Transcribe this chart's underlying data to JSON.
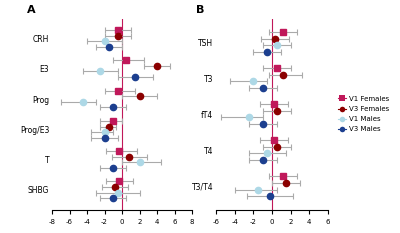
{
  "panel_A": {
    "categories": [
      "CRH",
      "E3",
      "Prog",
      "Prog/E3",
      "T",
      "SHBG"
    ],
    "series": {
      "V1 Females": {
        "color": "#c0185a",
        "marker": "s",
        "values": [
          -0.5,
          0.5,
          -0.5,
          -1.0,
          -0.3,
          -0.3
        ],
        "xerr_low": [
          1.5,
          1.5,
          1.5,
          1.5,
          1.5,
          1.5
        ],
        "xerr_high": [
          1.5,
          2.0,
          2.0,
          1.0,
          2.0,
          1.5
        ]
      },
      "V3 Females": {
        "color": "#8b0000",
        "marker": "o",
        "values": [
          -0.5,
          4.0,
          2.0,
          -1.5,
          0.8,
          -0.8
        ],
        "xerr_low": [
          1.5,
          1.5,
          2.0,
          1.0,
          2.0,
          1.5
        ],
        "xerr_high": [
          1.5,
          1.5,
          2.0,
          0.8,
          2.0,
          1.5
        ]
      },
      "V1 Males": {
        "color": "#add8e6",
        "marker": "o",
        "values": [
          -2.0,
          -2.5,
          -4.5,
          -2.0,
          2.0,
          -0.5
        ],
        "xerr_low": [
          2.0,
          2.0,
          2.5,
          1.5,
          2.0,
          2.5
        ],
        "xerr_high": [
          2.0,
          2.0,
          1.5,
          1.0,
          2.5,
          2.5
        ]
      },
      "V3 Males": {
        "color": "#1c3f8f",
        "marker": "o",
        "values": [
          -1.5,
          1.5,
          -1.0,
          -2.0,
          -1.0,
          -1.0
        ],
        "xerr_low": [
          1.5,
          2.0,
          1.5,
          1.5,
          1.5,
          1.5
        ],
        "xerr_high": [
          1.5,
          2.0,
          1.5,
          1.5,
          1.5,
          1.5
        ]
      }
    },
    "xlim": [
      -8,
      8
    ],
    "xticks": [
      -8,
      -6,
      -4,
      -2,
      0,
      2,
      4,
      6,
      8
    ]
  },
  "panel_B": {
    "categories": [
      "TSH",
      "T3",
      "fT4",
      "T4",
      "T3/T4"
    ],
    "series": {
      "V1 Females": {
        "color": "#c0185a",
        "marker": "s",
        "values": [
          1.2,
          0.5,
          0.2,
          0.2,
          1.2
        ],
        "xerr_low": [
          1.5,
          1.5,
          1.5,
          1.5,
          1.5
        ],
        "xerr_high": [
          1.5,
          1.5,
          1.5,
          1.5,
          1.5
        ]
      },
      "V3 Females": {
        "color": "#8b0000",
        "marker": "o",
        "values": [
          0.3,
          1.2,
          0.5,
          0.5,
          1.5
        ],
        "xerr_low": [
          1.5,
          1.5,
          1.5,
          1.5,
          1.5
        ],
        "xerr_high": [
          1.5,
          2.0,
          1.5,
          1.5,
          1.5
        ]
      },
      "V1 Males": {
        "color": "#add8e6",
        "marker": "o",
        "values": [
          0.5,
          -2.0,
          -2.5,
          -0.5,
          -1.5
        ],
        "xerr_low": [
          1.5,
          2.5,
          3.0,
          2.0,
          2.5
        ],
        "xerr_high": [
          1.5,
          1.5,
          1.5,
          2.0,
          2.0
        ]
      },
      "V3 Males": {
        "color": "#1c3f8f",
        "marker": "o",
        "values": [
          -0.5,
          -1.0,
          -1.0,
          -1.0,
          -0.2
        ],
        "xerr_low": [
          1.5,
          1.5,
          1.5,
          1.5,
          2.5
        ],
        "xerr_high": [
          1.5,
          1.5,
          1.5,
          1.5,
          2.5
        ]
      }
    },
    "xlim": [
      -6,
      6
    ],
    "xticks": [
      -6,
      -4,
      -2,
      0,
      2,
      4,
      6
    ]
  },
  "legend_order": [
    "V1 Females",
    "V3 Females",
    "V1 Males",
    "V3 Males"
  ],
  "legend_colors": [
    "#c0185a",
    "#8b0000",
    "#add8e6",
    "#1c3f8f"
  ],
  "legend_markers": [
    "s",
    "o",
    "o",
    "o"
  ],
  "background_color": "#ffffff",
  "vline_color": "#c0185a",
  "error_color": "#aaaaaa",
  "label_fontsize": 5.5,
  "tick_fontsize": 5,
  "panel_label_fontsize": 8,
  "series_offsets": [
    0.28,
    0.09,
    -0.09,
    -0.28
  ]
}
